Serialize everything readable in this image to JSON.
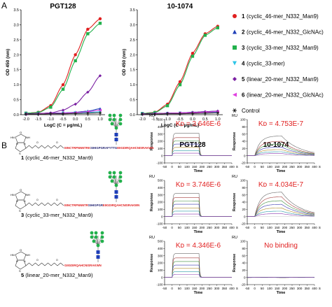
{
  "panel_letters": {
    "a": "A",
    "b": "B"
  },
  "legend": {
    "items": [
      {
        "num": "1",
        "label": "(cyclic_46-mer_N332_Man9)",
        "color": "#e02020",
        "marker": "circle"
      },
      {
        "num": "2",
        "label": "(cyclic_46-mer_N332_GlcNAc)",
        "color": "#1f3fb8",
        "marker": "triangle-up"
      },
      {
        "num": "3",
        "label": "(cyclic_33-mer_N332_Man9)",
        "color": "#22b14c",
        "marker": "square"
      },
      {
        "num": "4",
        "label": "(cyclic_33-mer)",
        "color": "#2ec5e8",
        "marker": "triangle-down"
      },
      {
        "num": "5",
        "label": "(linear_20-mer_N332_Man9)",
        "color": "#7a1fa2",
        "marker": "diamond"
      },
      {
        "num": "6",
        "label": "(linear_20-mer_N332_GlcNAc)",
        "color": "#e040e0",
        "marker": "triangle-left"
      },
      {
        "num": "",
        "label": "Control",
        "color": "#222222",
        "marker": "asterisk"
      }
    ]
  },
  "elisa_charts": [
    {
      "title": "PGT128",
      "xlabel": "LogC (C = μg/mL)",
      "ylabel": "OD 450 (nm)",
      "xlim": [
        -2.2,
        1.2
      ],
      "ylim": [
        0,
        3.5
      ],
      "xticks": [
        "-2.0",
        "-1.5",
        "-1.0",
        "-0.5",
        "0.0",
        "0.5",
        "1.0"
      ],
      "yticks": [
        "0.0",
        "0.5",
        "1.0",
        "1.5",
        "2.0",
        "2.5",
        "3.0",
        "3.5"
      ],
      "x": [
        -2.0,
        -1.5,
        -1.0,
        -0.5,
        0.0,
        0.5,
        1.0
      ],
      "series": [
        {
          "ref": "1",
          "values": [
            0.05,
            0.08,
            0.3,
            1.0,
            2.0,
            2.85,
            3.2
          ]
        },
        {
          "ref": "2",
          "values": [
            0.03,
            0.04,
            0.05,
            0.06,
            0.08,
            0.12,
            0.2
          ]
        },
        {
          "ref": "3",
          "values": [
            0.05,
            0.07,
            0.25,
            0.85,
            1.8,
            2.7,
            3.05
          ]
        },
        {
          "ref": "4",
          "values": [
            0.03,
            0.03,
            0.04,
            0.05,
            0.06,
            0.08,
            0.1
          ]
        },
        {
          "ref": "5",
          "values": [
            0.03,
            0.04,
            0.06,
            0.15,
            0.35,
            0.75,
            1.3
          ]
        },
        {
          "ref": "6",
          "values": [
            0.02,
            0.03,
            0.04,
            0.05,
            0.07,
            0.1,
            0.15
          ]
        },
        {
          "ref": "Control",
          "values": [
            0.02,
            0.02,
            0.03,
            0.03,
            0.04,
            0.05,
            0.06
          ]
        }
      ]
    },
    {
      "title": "10-1074",
      "xlabel": "LogC (C = μg/mL)",
      "ylabel": "OD 450 (nm)",
      "xlim": [
        -2.2,
        1.2
      ],
      "ylim": [
        0,
        3.5
      ],
      "xticks": [
        "-2.0",
        "-1.5",
        "-1.0",
        "-0.5",
        "0.0",
        "0.5",
        "1.0"
      ],
      "yticks": [
        "0.0",
        "0.5",
        "1.0",
        "1.5",
        "2.0",
        "2.5",
        "3.0",
        "3.5"
      ],
      "x": [
        -2.0,
        -1.5,
        -1.0,
        -0.5,
        0.0,
        0.5,
        1.0
      ],
      "series": [
        {
          "ref": "1",
          "values": [
            0.04,
            0.08,
            0.35,
            1.1,
            2.05,
            2.7,
            2.95
          ]
        },
        {
          "ref": "2",
          "values": [
            0.03,
            0.04,
            0.05,
            0.06,
            0.08,
            0.1,
            0.12
          ]
        },
        {
          "ref": "3",
          "values": [
            0.04,
            0.07,
            0.3,
            1.0,
            1.95,
            2.65,
            2.9
          ]
        },
        {
          "ref": "4",
          "values": [
            0.03,
            0.03,
            0.04,
            0.05,
            0.06,
            0.07,
            0.08
          ]
        },
        {
          "ref": "5",
          "values": [
            0.03,
            0.04,
            0.05,
            0.06,
            0.08,
            0.1,
            0.12
          ]
        },
        {
          "ref": "6",
          "values": [
            0.02,
            0.03,
            0.04,
            0.05,
            0.06,
            0.08,
            0.1
          ]
        },
        {
          "ref": "Control",
          "values": [
            0.02,
            0.02,
            0.03,
            0.03,
            0.04,
            0.05,
            0.06
          ]
        }
      ]
    }
  ],
  "spr": {
    "column_titles": [
      "PGT128",
      "10-1074"
    ],
    "ylabel": "Response",
    "yunit": "RU",
    "xlabel": "Time",
    "xunit": "s",
    "xticks": [
      "-50",
      "0",
      "50",
      "100",
      "150",
      "200",
      "250",
      "300",
      "350",
      "400"
    ],
    "rows": [
      {
        "compound_num": "1",
        "compound_label": "(cyclic_46-mer_N332_Man9)",
        "sequence": [
          {
            "text": "EINCTRPNNNTRK",
            "color": "#e02020"
          },
          {
            "text": "SIHIGPGRAFYTTG",
            "color": "#1f1f6e"
          },
          {
            "text": "EIIGDIRQAHCNISRAKWN",
            "color": "#e02020"
          }
        ],
        "panels": [
          {
            "kd": "Kᴅ = 3.646E-6",
            "kd_color": "#e02020",
            "yticks": [
              "500",
              "400",
              "300",
              "200",
              "100",
              "0",
              "-100"
            ],
            "ylim": [
              -100,
              500
            ],
            "levels": [
              310,
              250,
              205,
              160,
              115,
              70,
              35
            ],
            "dissociation": "fast",
            "no_binding": false
          },
          {
            "kd": "Kᴅ = 4.753E-7",
            "kd_color": "#e02020",
            "yticks": [
              "100",
              "80",
              "60",
              "40",
              "20",
              "0",
              "-20"
            ],
            "ylim": [
              -20,
              100
            ],
            "levels": [
              55,
              40,
              32,
              24,
              17,
              11,
              6
            ],
            "dissociation": "slow",
            "no_binding": false
          }
        ]
      },
      {
        "compound_num": "3",
        "compound_label": "(cyclic_33-mer_N332_Man9)",
        "sequence": [
          {
            "text": "EINCTRPNNNTR",
            "color": "#e02020"
          },
          {
            "text": "SIHIGPGR",
            "color": "#1f1f6e"
          },
          {
            "text": "EIIGDIRQAHCNISRAKWN",
            "color": "#e02020"
          }
        ],
        "panels": [
          {
            "kd": "Kᴅ = 3.746E-6",
            "kd_color": "#e02020",
            "yticks": [
              "500",
              "400",
              "300",
              "200",
              "100",
              "0",
              "-100"
            ],
            "ylim": [
              -100,
              500
            ],
            "levels": [
              320,
              265,
              215,
              170,
              120,
              75,
              35
            ],
            "dissociation": "fast",
            "no_binding": false
          },
          {
            "kd": "Kᴅ = 4.034E-7",
            "kd_color": "#e02020",
            "yticks": [
              "100",
              "80",
              "60",
              "40",
              "20",
              "0",
              "-20"
            ],
            "ylim": [
              -20,
              100
            ],
            "levels": [
              68,
              55,
              44,
              34,
              24,
              15,
              8
            ],
            "dissociation": "slow",
            "no_binding": false
          }
        ]
      },
      {
        "compound_num": "5",
        "compound_label": "(linear_20-mer_N332_Man9)",
        "sequence": [
          {
            "text": "GIIGDIRQAHCNISRAKWN",
            "color": "#e02020"
          }
        ],
        "panels": [
          {
            "kd": "Kᴅ = 4.346E-6",
            "kd_color": "#e02020",
            "yticks": [
              "500",
              "400",
              "300",
              "200",
              "100",
              "0",
              "-100"
            ],
            "ylim": [
              -100,
              500
            ],
            "levels": [
              330,
              270,
              220,
              170,
              125,
              80,
              40
            ],
            "dissociation": "fast",
            "no_binding": false
          },
          {
            "kd": "No binding",
            "kd_color": "#e02020",
            "yticks": [
              "100",
              "80",
              "60",
              "40",
              "20",
              "0",
              "-20"
            ],
            "ylim": [
              -20,
              100
            ],
            "levels": [
              2,
              1.5,
              1,
              0.5,
              0,
              -0.5,
              -1
            ],
            "dissociation": "none",
            "no_binding": true
          }
        ]
      }
    ]
  },
  "chart_data": [
    {
      "type": "line",
      "title": "PGT128",
      "xlabel": "LogC (C = μg/mL)",
      "ylabel": "OD 450 (nm)",
      "x": [
        -2.0,
        -1.5,
        -1.0,
        -0.5,
        0.0,
        0.5,
        1.0
      ],
      "xlim": [
        -2.2,
        1.2
      ],
      "ylim": [
        0,
        3.5
      ],
      "legend": "right",
      "series": [
        {
          "name": "1 (cyclic_46-mer_N332_Man9)",
          "values": [
            0.05,
            0.08,
            0.3,
            1.0,
            2.0,
            2.85,
            3.2
          ]
        },
        {
          "name": "2 (cyclic_46-mer_N332_GlcNAc)",
          "values": [
            0.03,
            0.04,
            0.05,
            0.06,
            0.08,
            0.12,
            0.2
          ]
        },
        {
          "name": "3 (cyclic_33-mer_N332_Man9)",
          "values": [
            0.05,
            0.07,
            0.25,
            0.85,
            1.8,
            2.7,
            3.05
          ]
        },
        {
          "name": "4 (cyclic_33-mer)",
          "values": [
            0.03,
            0.03,
            0.04,
            0.05,
            0.06,
            0.08,
            0.1
          ]
        },
        {
          "name": "5 (linear_20-mer_N332_Man9)",
          "values": [
            0.03,
            0.04,
            0.06,
            0.15,
            0.35,
            0.75,
            1.3
          ]
        },
        {
          "name": "6 (linear_20-mer_N332_GlcNAc)",
          "values": [
            0.02,
            0.03,
            0.04,
            0.05,
            0.07,
            0.1,
            0.15
          ]
        },
        {
          "name": "Control",
          "values": [
            0.02,
            0.02,
            0.03,
            0.03,
            0.04,
            0.05,
            0.06
          ]
        }
      ]
    },
    {
      "type": "line",
      "title": "10-1074",
      "xlabel": "LogC (C = μg/mL)",
      "ylabel": "OD 450 (nm)",
      "x": [
        -2.0,
        -1.5,
        -1.0,
        -0.5,
        0.0,
        0.5,
        1.0
      ],
      "xlim": [
        -2.2,
        1.2
      ],
      "ylim": [
        0,
        3.5
      ],
      "legend": "right",
      "series": [
        {
          "name": "1 (cyclic_46-mer_N332_Man9)",
          "values": [
            0.04,
            0.08,
            0.35,
            1.1,
            2.05,
            2.7,
            2.95
          ]
        },
        {
          "name": "2 (cyclic_46-mer_N332_GlcNAc)",
          "values": [
            0.03,
            0.04,
            0.05,
            0.06,
            0.08,
            0.1,
            0.12
          ]
        },
        {
          "name": "3 (cyclic_33-mer_N332_Man9)",
          "values": [
            0.04,
            0.07,
            0.3,
            1.0,
            1.95,
            2.65,
            2.9
          ]
        },
        {
          "name": "4 (cyclic_33-mer)",
          "values": [
            0.03,
            0.03,
            0.04,
            0.05,
            0.06,
            0.07,
            0.08
          ]
        },
        {
          "name": "5 (linear_20-mer_N332_Man9)",
          "values": [
            0.03,
            0.04,
            0.05,
            0.06,
            0.08,
            0.1,
            0.12
          ]
        },
        {
          "name": "6 (linear_20-mer_N332_GlcNAc)",
          "values": [
            0.02,
            0.03,
            0.04,
            0.05,
            0.06,
            0.08,
            0.1
          ]
        },
        {
          "name": "Control",
          "values": [
            0.02,
            0.02,
            0.03,
            0.03,
            0.04,
            0.05,
            0.06
          ]
        }
      ]
    }
  ]
}
